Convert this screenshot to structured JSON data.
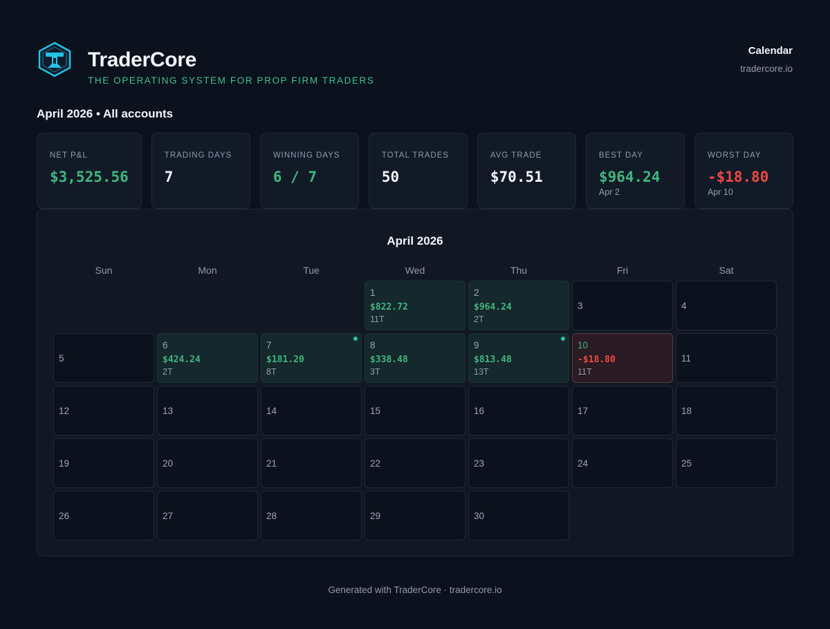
{
  "brand": {
    "name": "TraderCore",
    "tagline": "THE OPERATING SYSTEM FOR PROP FIRM TRADERS",
    "logo_icon": "shield-hexagon-icon",
    "accent": "#3fc28e",
    "logo_color": "#22c3e6"
  },
  "header": {
    "title": "Calendar",
    "site": "tradercore.io"
  },
  "period": "April 2026 • All accounts",
  "stats": [
    {
      "label": "NET P&L",
      "value": "$3,525.56",
      "tone": "pos",
      "sub": ""
    },
    {
      "label": "TRADING DAYS",
      "value": "7",
      "tone": "neutral",
      "sub": ""
    },
    {
      "label": "WINNING DAYS",
      "value": "6 / 7",
      "tone": "pos",
      "sub": ""
    },
    {
      "label": "TOTAL TRADES",
      "value": "50",
      "tone": "neutral",
      "sub": ""
    },
    {
      "label": "AVG TRADE",
      "value": "$70.51",
      "tone": "neutral",
      "sub": ""
    },
    {
      "label": "BEST DAY",
      "value": "$964.24",
      "tone": "pos",
      "sub": "Apr 2"
    },
    {
      "label": "WORST DAY",
      "value": "-$18.80",
      "tone": "neg",
      "sub": "Apr 10"
    }
  ],
  "calendar": {
    "title": "April 2026",
    "weekdays": [
      "Sun",
      "Mon",
      "Tue",
      "Wed",
      "Thu",
      "Fri",
      "Sat"
    ],
    "leading_blanks": 3,
    "days": [
      {
        "num": "1",
        "pnl": "$822.72",
        "trades": "11T",
        "status": "win",
        "dot": false
      },
      {
        "num": "2",
        "pnl": "$964.24",
        "trades": "2T",
        "status": "win",
        "dot": false
      },
      {
        "num": "3",
        "pnl": "",
        "trades": "",
        "status": "none",
        "dot": false
      },
      {
        "num": "4",
        "pnl": "",
        "trades": "",
        "status": "none",
        "dot": false
      },
      {
        "num": "5",
        "pnl": "",
        "trades": "",
        "status": "none",
        "dot": false
      },
      {
        "num": "6",
        "pnl": "$424.24",
        "trades": "2T",
        "status": "win",
        "dot": false
      },
      {
        "num": "7",
        "pnl": "$181.20",
        "trades": "8T",
        "status": "win",
        "dot": true
      },
      {
        "num": "8",
        "pnl": "$338.48",
        "trades": "3T",
        "status": "win",
        "dot": false
      },
      {
        "num": "9",
        "pnl": "$813.48",
        "trades": "13T",
        "status": "win",
        "dot": true
      },
      {
        "num": "10",
        "pnl": "-$18.80",
        "trades": "11T",
        "status": "loss",
        "dot": false
      },
      {
        "num": "11",
        "pnl": "",
        "trades": "",
        "status": "none",
        "dot": false
      },
      {
        "num": "12",
        "pnl": "",
        "trades": "",
        "status": "none",
        "dot": false
      },
      {
        "num": "13",
        "pnl": "",
        "trades": "",
        "status": "none",
        "dot": false
      },
      {
        "num": "14",
        "pnl": "",
        "trades": "",
        "status": "none",
        "dot": false
      },
      {
        "num": "15",
        "pnl": "",
        "trades": "",
        "status": "none",
        "dot": false
      },
      {
        "num": "16",
        "pnl": "",
        "trades": "",
        "status": "none",
        "dot": false
      },
      {
        "num": "17",
        "pnl": "",
        "trades": "",
        "status": "none",
        "dot": false
      },
      {
        "num": "18",
        "pnl": "",
        "trades": "",
        "status": "none",
        "dot": false
      },
      {
        "num": "19",
        "pnl": "",
        "trades": "",
        "status": "none",
        "dot": false
      },
      {
        "num": "20",
        "pnl": "",
        "trades": "",
        "status": "none",
        "dot": false
      },
      {
        "num": "21",
        "pnl": "",
        "trades": "",
        "status": "none",
        "dot": false
      },
      {
        "num": "22",
        "pnl": "",
        "trades": "",
        "status": "none",
        "dot": false
      },
      {
        "num": "23",
        "pnl": "",
        "trades": "",
        "status": "none",
        "dot": false
      },
      {
        "num": "24",
        "pnl": "",
        "trades": "",
        "status": "none",
        "dot": false
      },
      {
        "num": "25",
        "pnl": "",
        "trades": "",
        "status": "none",
        "dot": false
      },
      {
        "num": "26",
        "pnl": "",
        "trades": "",
        "status": "none",
        "dot": false
      },
      {
        "num": "27",
        "pnl": "",
        "trades": "",
        "status": "none",
        "dot": false
      },
      {
        "num": "28",
        "pnl": "",
        "trades": "",
        "status": "none",
        "dot": false
      },
      {
        "num": "29",
        "pnl": "",
        "trades": "",
        "status": "none",
        "dot": false
      },
      {
        "num": "30",
        "pnl": "",
        "trades": "",
        "status": "none",
        "dot": false
      }
    ]
  },
  "footer": "Generated with TraderCore · tradercore.io"
}
